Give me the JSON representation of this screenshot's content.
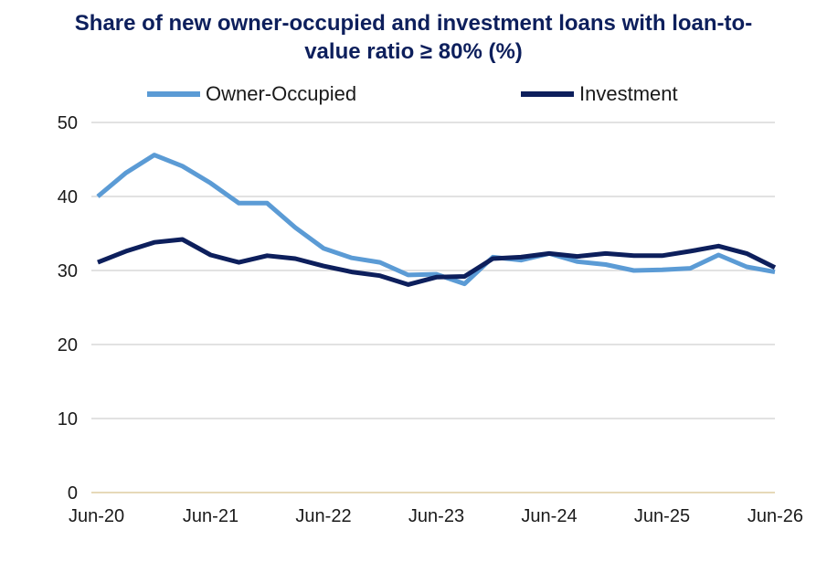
{
  "chart_data": {
    "type": "line",
    "title": "Share of new owner-occupied and investment loans with loan-to-value ratio ≥ 80% (%)",
    "title_lines": [
      "Share of new owner-occupied and investment loans with loan-to-",
      "value ratio ≥ 80% (%)"
    ],
    "x_tick_labels": [
      "Jun-20",
      "Jun-21",
      "Jun-22",
      "Jun-23",
      "Jun-24",
      "Jun-25",
      "Jun-26"
    ],
    "y_ticks": [
      0,
      10,
      20,
      30,
      40,
      50
    ],
    "ylim": [
      0,
      50
    ],
    "grid": true,
    "legend_position": "top",
    "x": [
      "Jun-20",
      "Sep-20",
      "Dec-20",
      "Mar-21",
      "Jun-21",
      "Sep-21",
      "Dec-21",
      "Mar-22",
      "Jun-22",
      "Sep-22",
      "Dec-22",
      "Mar-23",
      "Jun-23",
      "Sep-23",
      "Dec-23",
      "Mar-24",
      "Jun-24",
      "Sep-24",
      "Dec-24",
      "Mar-25",
      "Jun-25",
      "Sep-25",
      "Dec-25",
      "Mar-26",
      "Jun-26"
    ],
    "series": [
      {
        "name": "Owner-Occupied",
        "color": "#5b9bd5",
        "values": [
          40.0,
          43.2,
          45.6,
          44.1,
          41.8,
          39.1,
          39.1,
          35.8,
          33.0,
          31.7,
          31.1,
          29.4,
          29.5,
          28.2,
          31.8,
          31.4,
          32.3,
          31.2,
          30.8,
          30.0,
          30.1,
          30.3,
          32.1,
          30.5,
          29.8
        ]
      },
      {
        "name": "Investment",
        "color": "#0d1f5c",
        "values": [
          31.1,
          32.6,
          33.8,
          34.2,
          32.1,
          31.1,
          32.0,
          31.6,
          30.6,
          29.8,
          29.3,
          28.1,
          29.1,
          29.2,
          31.6,
          31.8,
          32.3,
          31.9,
          32.3,
          32.0,
          32.0,
          32.6,
          33.3,
          32.3,
          30.4
        ]
      }
    ]
  }
}
